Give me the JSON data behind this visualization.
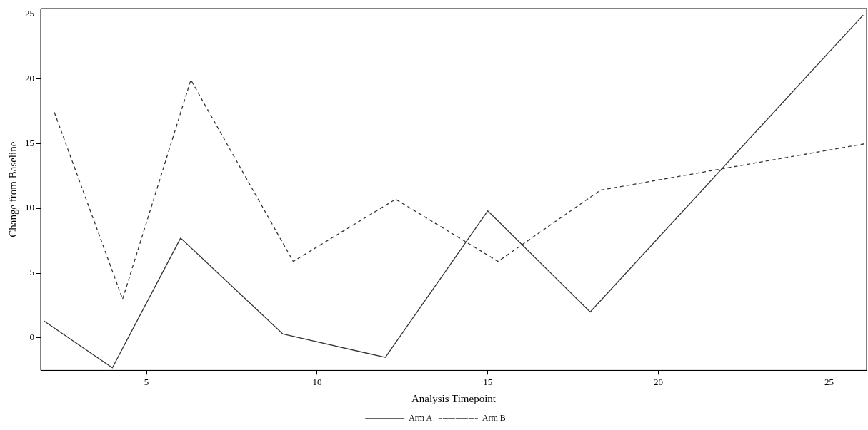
{
  "chart_data": {
    "type": "line",
    "xlabel": "Analysis Timepoint",
    "ylabel": "Change from Baseline",
    "series": [
      {
        "name": "Arm A",
        "color": "#333333",
        "line_style": "solid",
        "x": [
          2,
          4,
          6,
          9,
          12,
          15,
          18,
          26
        ],
        "values": [
          1.3,
          -2.3,
          7.7,
          0.3,
          -1.5,
          9.8,
          2.0,
          24.9
        ]
      },
      {
        "name": "Arm B",
        "color": "#333333",
        "line_style": "dashed",
        "x": [
          2.3,
          4.3,
          6.3,
          9.3,
          12.3,
          15.3,
          18.3,
          26.1
        ],
        "values": [
          17.4,
          3.0,
          19.9,
          5.9,
          10.7,
          5.9,
          11.4,
          15.0
        ]
      }
    ],
    "xlim": [
      1.9,
      26.1
    ],
    "xticks": [
      5,
      10,
      15,
      20,
      25
    ],
    "ylim": [
      -2.5,
      25.4
    ],
    "yticks": [
      0,
      5,
      10,
      15,
      20,
      25
    ],
    "grid": false,
    "legend": "bottom",
    "marker": "none"
  }
}
